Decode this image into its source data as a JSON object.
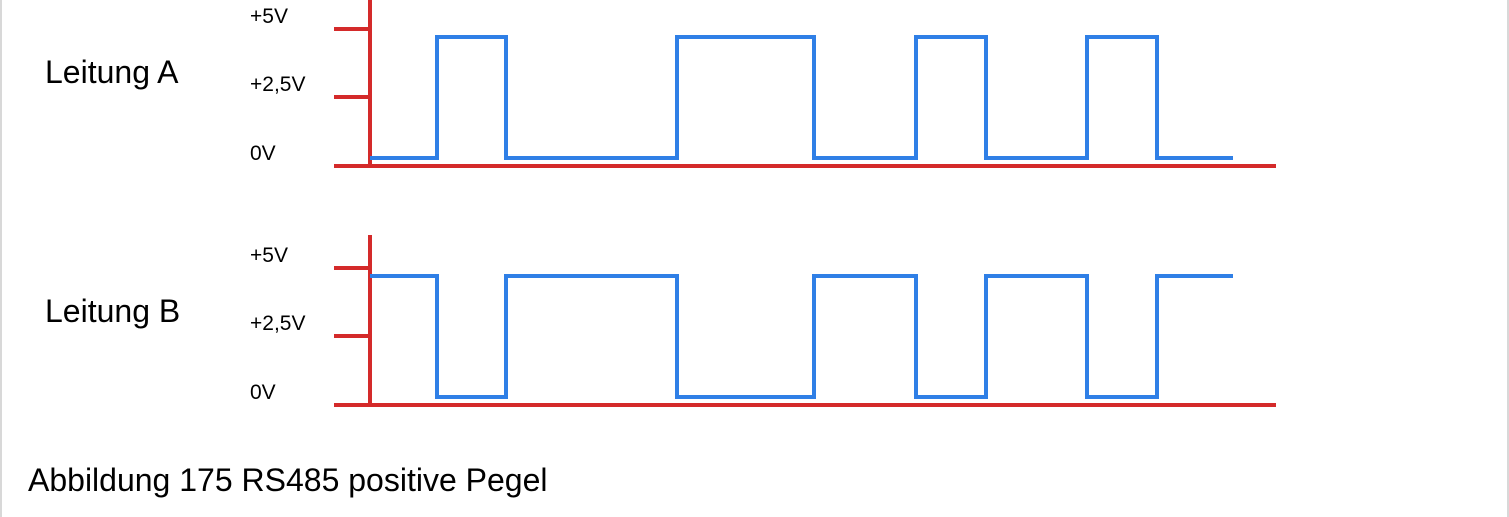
{
  "caption": "Abbildung 175 RS485 positive Pegel",
  "colors": {
    "axis": "#d42a2a",
    "signal": "#2f7fe6",
    "text": "#000000"
  },
  "chart_data": [
    {
      "type": "line",
      "series_label": "Leitung A",
      "ylim": [
        0,
        5
      ],
      "yticks": [
        {
          "value": 0,
          "label": "0V"
        },
        {
          "value": 2.5,
          "label": "+2,5V"
        },
        {
          "value": 5,
          "label": "+5V"
        }
      ],
      "low_level": 0,
      "high_level": 5,
      "bits": [
        0,
        1,
        0,
        0,
        0,
        1,
        1,
        0,
        1,
        0,
        1,
        0
      ],
      "grid": false
    },
    {
      "type": "line",
      "series_label": "Leitung B",
      "ylim": [
        0,
        5
      ],
      "yticks": [
        {
          "value": 0,
          "label": "0V"
        },
        {
          "value": 2.5,
          "label": "+2,5V"
        },
        {
          "value": 5,
          "label": "+5V"
        }
      ],
      "low_level": 0,
      "high_level": 5,
      "bits": [
        1,
        0,
        1,
        1,
        1,
        0,
        0,
        1,
        0,
        1,
        0,
        1
      ],
      "grid": false
    }
  ]
}
